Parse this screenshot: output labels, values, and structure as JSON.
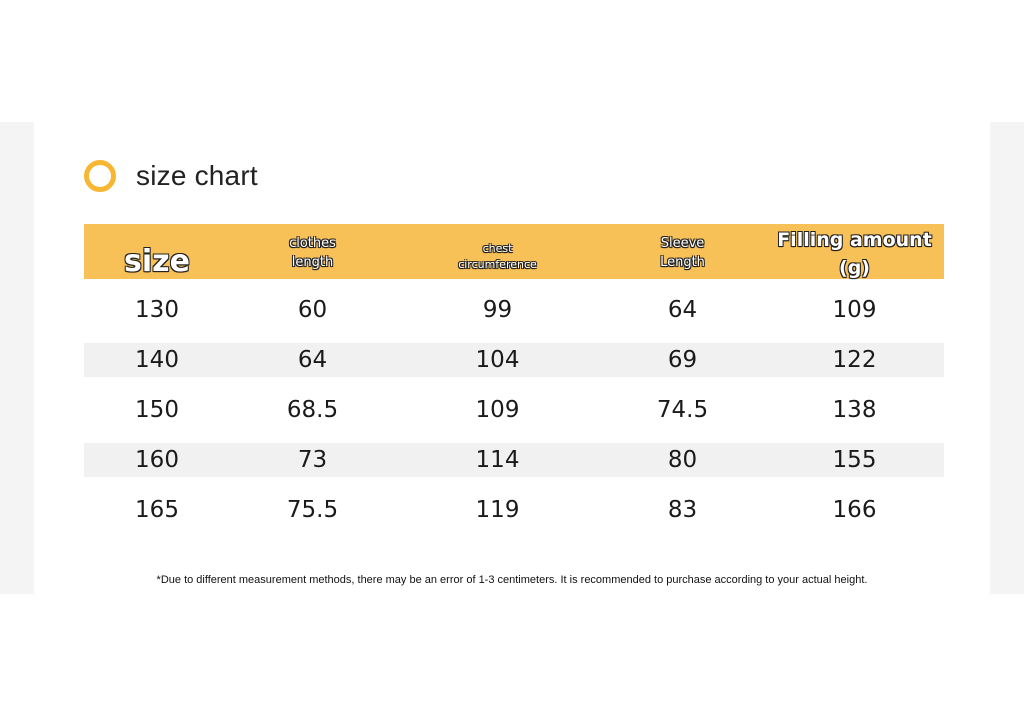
{
  "title": "size chart",
  "header": {
    "size": "size",
    "clothes_length": [
      "clothes",
      "length"
    ],
    "chest": [
      "chest",
      "circumference"
    ],
    "sleeve": [
      "Sleeve",
      "Length"
    ],
    "filling": "Filling amount (g)"
  },
  "rows": [
    [
      "130",
      "60",
      "99",
      "64",
      "109"
    ],
    [
      "140",
      "64",
      "104",
      "69",
      "122"
    ],
    [
      "150",
      "68.5",
      "109",
      "74.5",
      "138"
    ],
    [
      "160",
      "73",
      "114",
      "80",
      "155"
    ],
    [
      "165",
      "75.5",
      "119",
      "83",
      "166"
    ]
  ],
  "note": "*Due to different measurement methods, there may be an error of 1-3 centimeters. It is recommended to purchase according to your actual height.",
  "colors": {
    "accent": "#f7b733",
    "header_bg": "#f8c158",
    "row_shade": "#f1f1f1"
  }
}
